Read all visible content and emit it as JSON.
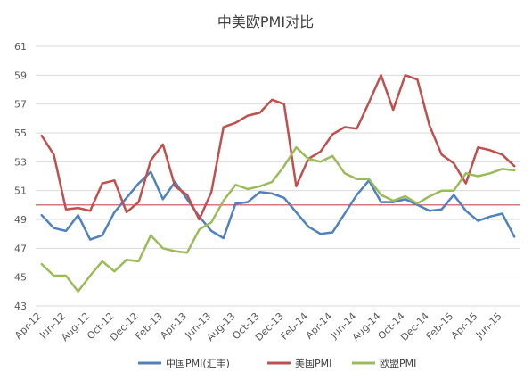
{
  "chart_data": {
    "type": "line",
    "title": "中美欧PMI对比",
    "xlabel": "",
    "ylabel": "",
    "ylim": [
      43,
      61
    ],
    "yticks": [
      43,
      45,
      47,
      49,
      51,
      53,
      55,
      57,
      59,
      61
    ],
    "grid": "horizontal",
    "legend_position": "bottom",
    "x": [
      "Apr-12",
      "May-12",
      "Jun-12",
      "Jul-12",
      "Aug-12",
      "Sep-12",
      "Oct-12",
      "Nov-12",
      "Dec-12",
      "Jan-13",
      "Feb-13",
      "Mar-13",
      "Apr-13",
      "May-13",
      "Jun-13",
      "Jul-13",
      "Aug-13",
      "Sep-13",
      "Oct-13",
      "Nov-13",
      "Dec-13",
      "Jan-14",
      "Feb-14",
      "Mar-14",
      "Apr-14",
      "May-14",
      "Jun-14",
      "Jul-14",
      "Aug-14",
      "Sep-14",
      "Oct-14",
      "Nov-14",
      "Dec-14",
      "Jan-15",
      "Feb-15",
      "Mar-15",
      "Apr-15",
      "May-15",
      "Jun-15",
      "Jul-15"
    ],
    "x_tick_labels": [
      "Apr-12",
      "Jun-12",
      "Aug-12",
      "Oct-12",
      "Dec-12",
      "Feb-13",
      "Apr-13",
      "Jun-13",
      "Aug-13",
      "Oct-13",
      "Dec-13",
      "Feb-14",
      "Apr-14",
      "Jun-14",
      "Aug-14",
      "Oct-14",
      "Dec-14",
      "Feb-15",
      "Apr-15",
      "Jun-15"
    ],
    "reference_line": {
      "value": 50,
      "color": "#c0504d"
    },
    "series": [
      {
        "name": "中国PMI(汇丰)",
        "color": "#4f81bd",
        "values": [
          49.3,
          48.4,
          48.2,
          49.3,
          47.6,
          47.9,
          49.5,
          50.5,
          51.5,
          52.3,
          50.4,
          51.6,
          50.4,
          49.2,
          48.2,
          47.7,
          50.1,
          50.2,
          50.9,
          50.8,
          50.5,
          49.5,
          48.5,
          48.0,
          48.1,
          49.4,
          50.7,
          51.7,
          50.2,
          50.2,
          50.4,
          50.0,
          49.6,
          49.7,
          50.7,
          49.6,
          48.9,
          49.2,
          49.4,
          47.8
        ]
      },
      {
        "name": "美国PMI",
        "color": "#c0504d",
        "values": [
          54.8,
          53.5,
          49.7,
          49.8,
          49.6,
          51.5,
          51.7,
          49.5,
          50.2,
          53.1,
          54.2,
          51.3,
          50.7,
          49.0,
          50.9,
          55.4,
          55.7,
          56.2,
          56.4,
          57.3,
          57.0,
          51.3,
          53.2,
          53.7,
          54.9,
          55.4,
          55.3,
          57.1,
          59.0,
          56.6,
          59.0,
          58.7,
          55.5,
          53.5,
          52.9,
          51.5,
          54.0,
          53.8,
          53.5,
          52.7
        ]
      },
      {
        "name": "欧盟PMI",
        "color": "#9bbb59",
        "values": [
          45.9,
          45.1,
          45.1,
          44.0,
          45.1,
          46.1,
          45.4,
          46.2,
          46.1,
          47.9,
          47.0,
          46.8,
          46.7,
          48.3,
          48.8,
          50.3,
          51.4,
          51.1,
          51.3,
          51.6,
          52.7,
          54.0,
          53.2,
          53.0,
          53.4,
          52.2,
          51.8,
          51.8,
          50.7,
          50.3,
          50.6,
          50.1,
          50.6,
          51.0,
          51.0,
          52.2,
          52.0,
          52.2,
          52.5,
          52.4
        ]
      }
    ]
  }
}
